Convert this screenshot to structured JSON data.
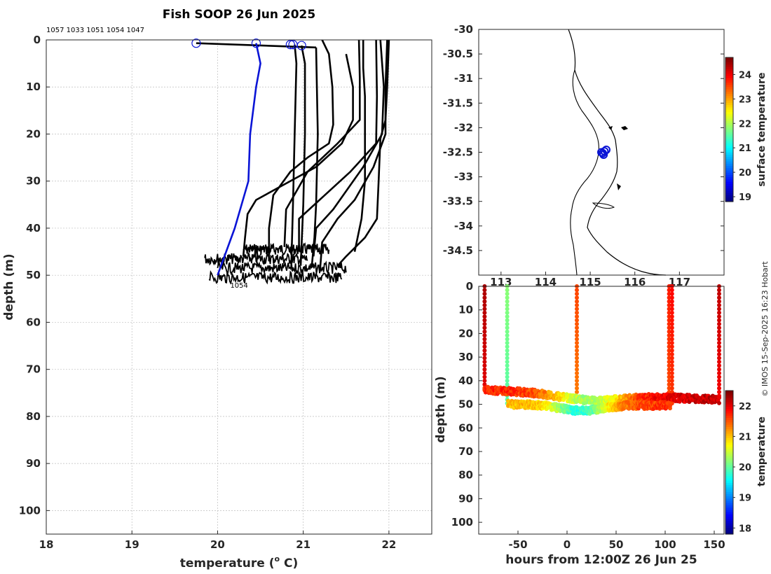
{
  "colors": {
    "profile": "#000000",
    "highlight": "#0a14d6",
    "grid": "#bdbdbd",
    "axis": "#262626",
    "coast": "#000000"
  },
  "credit": "© IMOS 15-Sep-2025 16:23 Hobart",
  "chart_data": [
    {
      "type": "line",
      "title": "Fish SOOP 26 Jun 2025",
      "xlabel": "temperature (",
      "xlabel_sup": "o",
      "xlabel_unit": " C)",
      "ylabel": "depth (m)",
      "xlim": [
        18,
        22.5
      ],
      "ylim": [
        0,
        105
      ],
      "x_ticks": [
        18,
        19,
        20,
        21,
        22
      ],
      "y_ticks": [
        0,
        10,
        20,
        30,
        40,
        50,
        60,
        70,
        80,
        90,
        100
      ],
      "top_label": "1057 1033 1051 1054 1047",
      "point_label": "1054",
      "start_markers": [
        [
          19.75,
          0.7
        ],
        [
          20.45,
          0.7
        ],
        [
          20.85,
          1.0
        ],
        [
          20.88,
          1.0
        ],
        [
          20.98,
          1.2
        ]
      ],
      "series": [
        {
          "name": "track",
          "highlight": false,
          "points": [
            [
              19.75,
              0.7
            ],
            [
              21.15,
              1.6
            ]
          ]
        },
        {
          "name": "1054",
          "highlight": true,
          "points": [
            [
              20.45,
              0.7
            ],
            [
              20.5,
              5
            ],
            [
              20.45,
              10
            ],
            [
              20.38,
              20
            ],
            [
              20.36,
              30
            ],
            [
              20.2,
              40
            ],
            [
              20.0,
              50
            ]
          ]
        },
        {
          "name": "p1",
          "highlight": false,
          "points": [
            [
              20.9,
              1
            ],
            [
              20.92,
              5
            ],
            [
              20.9,
              20
            ],
            [
              20.88,
              35
            ],
            [
              20.86,
              48
            ]
          ]
        },
        {
          "name": "p2",
          "highlight": false,
          "points": [
            [
              20.98,
              1.2
            ],
            [
              21.02,
              5
            ],
            [
              21.02,
              20
            ],
            [
              21.0,
              35
            ],
            [
              20.97,
              48
            ]
          ]
        },
        {
          "name": "p3",
          "highlight": false,
          "points": [
            [
              21.15,
              1.6
            ],
            [
              21.17,
              20
            ],
            [
              21.15,
              35
            ],
            [
              21.13,
              42
            ],
            [
              21.1,
              48
            ]
          ]
        },
        {
          "name": "p4",
          "highlight": false,
          "points": [
            [
              21.22,
              0
            ],
            [
              21.3,
              3
            ],
            [
              21.34,
              10
            ],
            [
              21.35,
              18
            ],
            [
              21.3,
              22
            ],
            [
              21.05,
              25
            ],
            [
              20.85,
              28
            ],
            [
              20.65,
              33
            ],
            [
              20.6,
              40
            ],
            [
              20.6,
              47
            ]
          ]
        },
        {
          "name": "p5",
          "highlight": false,
          "points": [
            [
              21.5,
              3
            ],
            [
              21.58,
              10
            ],
            [
              21.58,
              17
            ],
            [
              21.45,
              22
            ],
            [
              21.15,
              27
            ],
            [
              20.75,
              31
            ],
            [
              20.45,
              34
            ],
            [
              20.35,
              37
            ],
            [
              20.32,
              42
            ],
            [
              20.3,
              46
            ]
          ]
        },
        {
          "name": "p6",
          "highlight": false,
          "points": [
            [
              21.65,
              0
            ],
            [
              21.66,
              8
            ],
            [
              21.66,
              17
            ],
            [
              21.4,
              22
            ],
            [
              21.05,
              28
            ],
            [
              20.8,
              36
            ],
            [
              20.78,
              44
            ]
          ]
        },
        {
          "name": "p7",
          "highlight": false,
          "points": [
            [
              21.85,
              0
            ],
            [
              21.86,
              12
            ],
            [
              21.85,
              22
            ],
            [
              21.55,
              28
            ],
            [
              21.25,
              33
            ],
            [
              20.95,
              38
            ],
            [
              20.95,
              45
            ]
          ]
        },
        {
          "name": "p8",
          "highlight": false,
          "points": [
            [
              21.9,
              0
            ],
            [
              21.94,
              10
            ],
            [
              21.92,
              20
            ],
            [
              21.7,
              27
            ],
            [
              21.35,
              36
            ],
            [
              21.15,
              40
            ],
            [
              21.12,
              46
            ]
          ]
        },
        {
          "name": "p9",
          "highlight": false,
          "points": [
            [
              21.98,
              0
            ],
            [
              21.96,
              10
            ],
            [
              21.96,
              20
            ],
            [
              21.82,
              27
            ],
            [
              21.6,
              34
            ],
            [
              21.4,
              38
            ],
            [
              21.22,
              43
            ],
            [
              21.2,
              48
            ]
          ]
        },
        {
          "name": "p10",
          "highlight": false,
          "points": [
            [
              22.0,
              0
            ],
            [
              21.98,
              10
            ],
            [
              21.96,
              17
            ],
            [
              21.9,
              21
            ],
            [
              21.88,
              30
            ],
            [
              21.86,
              38
            ],
            [
              21.72,
              42
            ],
            [
              21.5,
              46
            ],
            [
              21.4,
              48
            ]
          ]
        },
        {
          "name": "p11",
          "highlight": false,
          "points": [
            [
              21.7,
              0
            ],
            [
              21.7,
              6
            ],
            [
              21.72,
              12
            ],
            [
              21.72,
              20
            ],
            [
              21.72,
              30
            ],
            [
              21.68,
              38
            ],
            [
              21.6,
              45
            ]
          ]
        }
      ],
      "noise_bands": [
        {
          "depth": 44.5,
          "xmin": 20.3,
          "xmax": 21.3
        },
        {
          "depth": 46.5,
          "xmin": 19.85,
          "xmax": 21.05
        },
        {
          "depth": 48.5,
          "xmin": 20.0,
          "xmax": 21.5
        },
        {
          "depth": 50.5,
          "xmin": 19.9,
          "xmax": 21.45
        }
      ]
    },
    {
      "type": "scatter",
      "title": "",
      "xlabel": "",
      "ylabel": "",
      "xlim": [
        112.5,
        118
      ],
      "ylim": [
        -35,
        -30
      ],
      "x_ticks": [
        113,
        114,
        115,
        116,
        117
      ],
      "x_tick_labels": [
        "113",
        "114",
        "115",
        "116",
        "117"
      ],
      "y_ticks": [
        -30,
        -30.5,
        -31,
        -31.5,
        -32,
        -32.5,
        -33,
        -33.5,
        -34,
        -34.5
      ],
      "y_tick_labels": [
        "-30",
        "-30.5",
        "-31",
        "-31.5",
        "-32",
        "-32.5",
        "-33",
        "-33.5",
        "-34",
        "-34.5"
      ],
      "points": [
        [
          115.28,
          -32.52
        ],
        [
          115.36,
          -32.45
        ],
        [
          115.32,
          -32.48
        ],
        [
          115.25,
          -32.5
        ],
        [
          115.3,
          -32.55
        ]
      ],
      "colorbar": {
        "label": "surface temperature",
        "min": 18.8,
        "max": 24.7,
        "ticks": [
          19,
          20,
          21,
          22,
          23,
          24
        ]
      }
    },
    {
      "type": "scatter",
      "title": "",
      "xlabel": "hours from 12:00Z 26 Jun 25",
      "ylabel": "depth (m)",
      "xlim": [
        -90,
        160
      ],
      "ylim": [
        0,
        105
      ],
      "x_ticks": [
        -50,
        0,
        50,
        100,
        150
      ],
      "y_ticks": [
        0,
        10,
        20,
        30,
        40,
        50,
        60,
        70,
        80,
        90,
        100
      ],
      "colorbar": {
        "label": "temperature",
        "min": 17.8,
        "max": 22.5,
        "ticks": [
          18,
          19,
          20,
          21,
          22
        ]
      },
      "segments": [
        {
          "name": "vertical-a",
          "kind": "vertical",
          "x": -84,
          "from": 0,
          "to": 44,
          "temp": 22.3
        },
        {
          "name": "vertical-b",
          "kind": "vertical",
          "x": -61,
          "from": 0,
          "to": 50,
          "temp": 20.2
        },
        {
          "name": "vertical-c",
          "kind": "vertical",
          "x": 10,
          "from": 0,
          "to": 46,
          "temp": 21.6
        },
        {
          "name": "vertical-d",
          "kind": "vertical",
          "x": 104,
          "from": 0,
          "to": 50,
          "temp": 21.8
        },
        {
          "name": "vertical-e",
          "kind": "vertical",
          "x": 107,
          "from": 0,
          "to": 50,
          "temp": 21.9
        },
        {
          "name": "vertical-f",
          "kind": "vertical",
          "x": 155,
          "from": 0,
          "to": 48,
          "temp": 22.2
        },
        {
          "name": "track-upper",
          "kind": "horizontal",
          "x_from": -84,
          "x_to": 155,
          "depth_from": 44,
          "depth_to": 48,
          "temp_start": 21.7,
          "temp_end": 22.2
        },
        {
          "name": "track-lower",
          "kind": "horizontal",
          "x_from": -60,
          "x_to": 105,
          "depth_from": 50,
          "depth_to": 50.5,
          "temp_start": 21.0,
          "temp_end": 21.7
        }
      ]
    }
  ]
}
